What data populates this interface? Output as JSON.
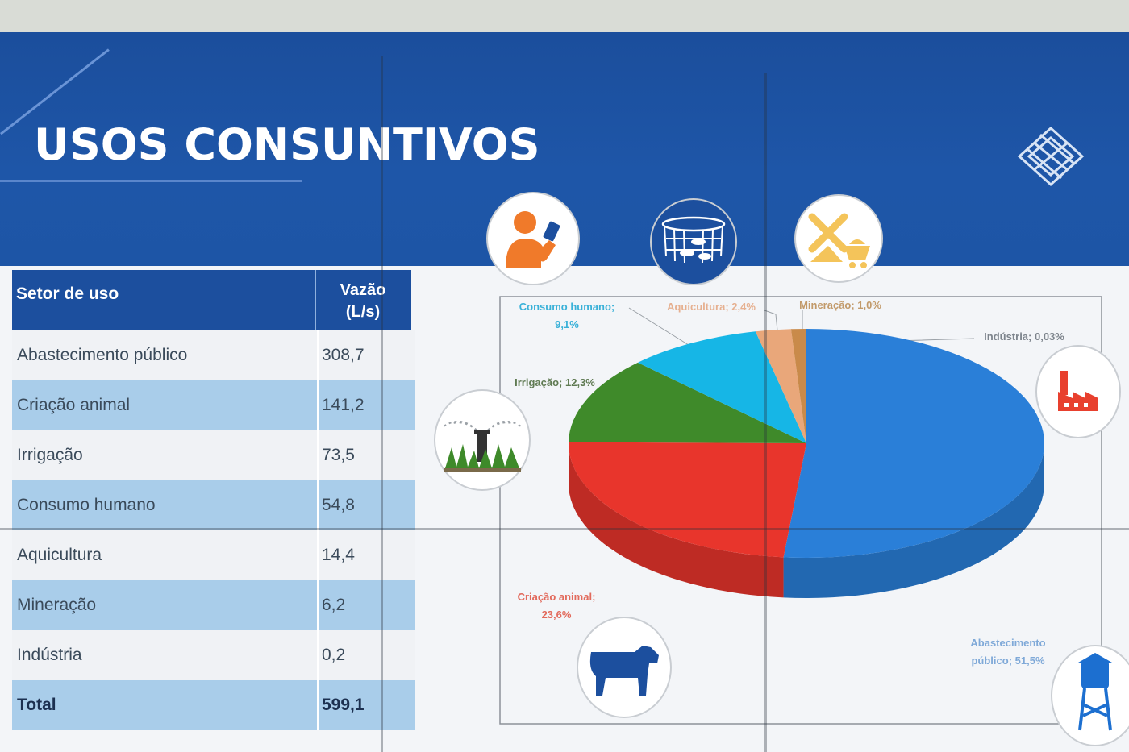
{
  "header": {
    "title": "USOS CONSUNTIVOS"
  },
  "table": {
    "col_sector": "Setor de uso",
    "col_flow_line1": "Vazão",
    "col_flow_line2": "(L/s)",
    "rows": [
      {
        "sector": "Abastecimento público",
        "flow": "308,7"
      },
      {
        "sector": "Criação animal",
        "flow": "141,2"
      },
      {
        "sector": "Irrigação",
        "flow": "73,5"
      },
      {
        "sector": "Consumo humano",
        "flow": "54,8"
      },
      {
        "sector": "Aquicultura",
        "flow": "14,4"
      },
      {
        "sector": "Mineração",
        "flow": "6,2"
      },
      {
        "sector": "Indústria",
        "flow": "0,2"
      }
    ],
    "total_label": "Total",
    "total_value": "599,1"
  },
  "chart_data": {
    "type": "pie",
    "categories": [
      "Abastecimento público",
      "Criação animal",
      "Irrigação",
      "Consumo humano",
      "Aquicultura",
      "Mineração",
      "Indústria"
    ],
    "values": [
      51.5,
      23.6,
      12.3,
      9.1,
      2.4,
      1.0,
      0.03
    ],
    "colors": [
      "#2a7fd8",
      "#e8352c",
      "#3f8a2a",
      "#16b6e6",
      "#e9a77a",
      "#c98a4a",
      "#d9dde2"
    ],
    "data_labels": [
      {
        "line1": "Abastecimento",
        "line2": "público; 51,5%"
      },
      {
        "line1": "Criação animal;",
        "line2": "23,6%"
      },
      {
        "line1": "Irrigação; 12,3%",
        "line2": ""
      },
      {
        "line1": "Consumo humano;",
        "line2": "9,1%"
      },
      {
        "line1": "Aquicultura; 2,4%",
        "line2": ""
      },
      {
        "line1": "Mineração; 1,0%",
        "line2": ""
      },
      {
        "line1": "Indústria; 0,03%",
        "line2": ""
      }
    ]
  },
  "icons": {
    "consumo_humano": "person-drinking-icon",
    "aquicultura": "fish-net-icon",
    "mineracao": "mining-cart-icon",
    "industria": "factory-icon",
    "irrigacao": "sprinkler-icon",
    "criacao_animal": "cow-icon",
    "abastecimento": "water-tower-icon"
  }
}
